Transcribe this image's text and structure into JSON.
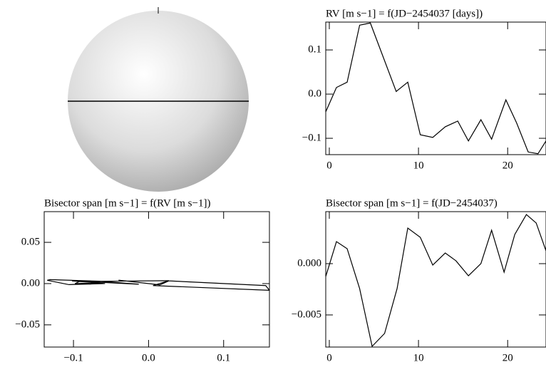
{
  "chart_data": [
    {
      "type": "line",
      "title": "RV [m s−1] = f(JD−2454037 [days])",
      "x": [
        -0.4,
        0.8,
        2,
        3.4,
        4.6,
        7.5,
        8.8,
        10.2,
        11.6,
        13,
        14.4,
        15.6,
        17,
        18.2,
        19.8,
        21,
        22.3,
        23.4,
        24.3
      ],
      "values": [
        -0.04,
        0.015,
        0.027,
        0.156,
        0.161,
        0.006,
        0.027,
        -0.092,
        -0.098,
        -0.074,
        -0.061,
        -0.106,
        -0.058,
        -0.102,
        -0.013,
        -0.065,
        -0.131,
        -0.135,
        -0.106
      ],
      "color": "#000000",
      "xlim": [
        -0.4,
        24.3
      ],
      "ylim": [
        -0.137,
        0.163
      ],
      "xticks": [
        0,
        10,
        20
      ],
      "yticks": [
        {
          "value": -0.1,
          "label": "−0.1"
        },
        {
          "value": 0,
          "label": "0.0"
        },
        0.1
      ]
    },
    {
      "type": "line",
      "title": "Bisector span [m s−1] = f(RV [m s−1])",
      "x": [
        -0.04,
        0.015,
        0.027,
        0.156,
        0.161,
        0.006,
        0.027,
        -0.092,
        -0.098,
        -0.074,
        -0.061,
        -0.106,
        -0.058,
        -0.102,
        -0.013,
        -0.065,
        -0.131,
        -0.135,
        -0.106
      ],
      "values": [
        0.0042,
        -0.0015,
        0.0033,
        -0.0024,
        -0.0081,
        -0.0024,
        0.0035,
        0.0026,
        -0.0001,
        0.001,
        0.0003,
        -0.0012,
        0.0,
        0.0033,
        -0.0008,
        0.0029,
        0.0048,
        0.004,
        -0.0013
      ],
      "color": "#000000",
      "xlim": [
        -0.139,
        0.161
      ],
      "ylim": [
        -0.0769,
        0.0872
      ],
      "xticks": [
        {
          "value": -0.1,
          "label": "−0.1"
        },
        {
          "value": 0,
          "label": "0.0"
        },
        0.1
      ],
      "yticks": [
        {
          "value": -0.05,
          "label": "−0.05"
        },
        {
          "value": 0,
          "label": "0.00"
        },
        0.05
      ]
    },
    {
      "type": "line",
      "title": "Bisector span [m s−1] = f(JD−2454037)",
      "x": [
        -0.4,
        0.8,
        2,
        3.4,
        4.8,
        6.2,
        7.6,
        8.8,
        10.2,
        11.6,
        13,
        14.2,
        15.6,
        17,
        18.2,
        19.6,
        20.8,
        22.1,
        23.2,
        24.3
      ],
      "values": [
        -0.00125,
        0.00215,
        0.00146,
        -0.00243,
        -0.00806,
        -0.0068,
        -0.00243,
        0.00347,
        0.00257,
        -0.00014,
        0.00104,
        0.00028,
        -0.00118,
        0,
        0.00326,
        -0.00083,
        0.00285,
        0.00479,
        0.00396,
        0.00125
      ],
      "color": "#000000",
      "xlim": [
        -0.4,
        24.3
      ],
      "ylim": [
        -0.00813,
        0.00507
      ],
      "xticks": [
        0,
        10,
        20
      ],
      "yticks": [
        {
          "value": -0.005,
          "label": "−0.005"
        },
        {
          "value": 0,
          "label": "0.000"
        }
      ]
    }
  ]
}
